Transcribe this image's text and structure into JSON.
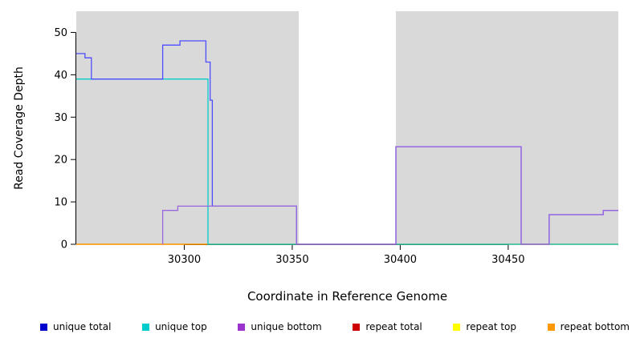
{
  "figure": {
    "plot_bg": "#d9d9d9",
    "highlight_band": {
      "x_start": 30353,
      "x_end": 30398,
      "color": "#ffffff"
    }
  },
  "axes": {
    "x": {
      "label": "Coordinate in Reference Genome",
      "ticks": [
        30300,
        30350,
        30400,
        30450
      ]
    },
    "y": {
      "label": "Read Coverage Depth",
      "ticks": [
        0,
        10,
        20,
        30,
        40,
        50
      ]
    }
  },
  "chart_data": {
    "type": "line",
    "title": "",
    "xlabel": "Coordinate in Reference Genome",
    "ylabel": "Read Coverage Depth",
    "xlim": [
      30250,
      30501
    ],
    "ylim": [
      0,
      55
    ],
    "grid": false,
    "legend_position": "bottom",
    "series": [
      {
        "name": "repeat total",
        "color": "#cc2222",
        "points": [
          [
            30250,
            0
          ],
          [
            30501,
            0
          ]
        ]
      },
      {
        "name": "repeat top",
        "color": "#eeee00",
        "points": [
          [
            30250,
            0
          ],
          [
            30501,
            0
          ]
        ]
      },
      {
        "name": "repeat bottom",
        "color": "#ff9900",
        "points": [
          [
            30250,
            0
          ],
          [
            30501,
            0
          ]
        ]
      },
      {
        "name": "unique top",
        "color": "#00cccc",
        "points": [
          [
            30250,
            39
          ],
          [
            30311,
            39
          ],
          [
            30311,
            0
          ],
          [
            30501,
            0
          ]
        ]
      },
      {
        "name": "unique total",
        "color": "#4d4dff",
        "points": [
          [
            30250,
            45
          ],
          [
            30254,
            45
          ],
          [
            30254,
            44
          ],
          [
            30257,
            44
          ],
          [
            30257,
            39
          ],
          [
            30290,
            39
          ],
          [
            30290,
            47
          ],
          [
            30298,
            47
          ],
          [
            30298,
            48
          ],
          [
            30310,
            48
          ],
          [
            30310,
            43
          ],
          [
            30312,
            43
          ],
          [
            30312,
            34
          ],
          [
            30313,
            34
          ],
          [
            30313,
            9
          ],
          [
            30352,
            9
          ],
          [
            30352,
            0
          ],
          [
            30398,
            0
          ],
          [
            30398,
            23
          ],
          [
            30456,
            23
          ],
          [
            30456,
            0
          ],
          [
            30469,
            0
          ],
          [
            30469,
            7
          ],
          [
            30494,
            7
          ],
          [
            30494,
            8
          ],
          [
            30501,
            8
          ]
        ]
      },
      {
        "name": "unique bottom",
        "color": "#9966dd",
        "points": [
          [
            30290,
            0
          ],
          [
            30290,
            8
          ],
          [
            30297,
            8
          ],
          [
            30297,
            9
          ],
          [
            30352,
            9
          ],
          [
            30352,
            0
          ],
          [
            30398,
            0
          ],
          [
            30398,
            23
          ],
          [
            30456,
            23
          ],
          [
            30456,
            0
          ],
          [
            30469,
            0
          ],
          [
            30469,
            7
          ],
          [
            30494,
            7
          ],
          [
            30494,
            8
          ],
          [
            30501,
            8
          ]
        ]
      }
    ]
  },
  "legend": {
    "items": [
      {
        "label": "unique total",
        "color": "#0000cc"
      },
      {
        "label": "unique top",
        "color": "#00cccc"
      },
      {
        "label": "unique bottom",
        "color": "#9933cc"
      },
      {
        "label": "repeat total",
        "color": "#cc0000"
      },
      {
        "label": "repeat top",
        "color": "#ffff00"
      },
      {
        "label": "repeat bottom",
        "color": "#ff9900"
      }
    ]
  }
}
